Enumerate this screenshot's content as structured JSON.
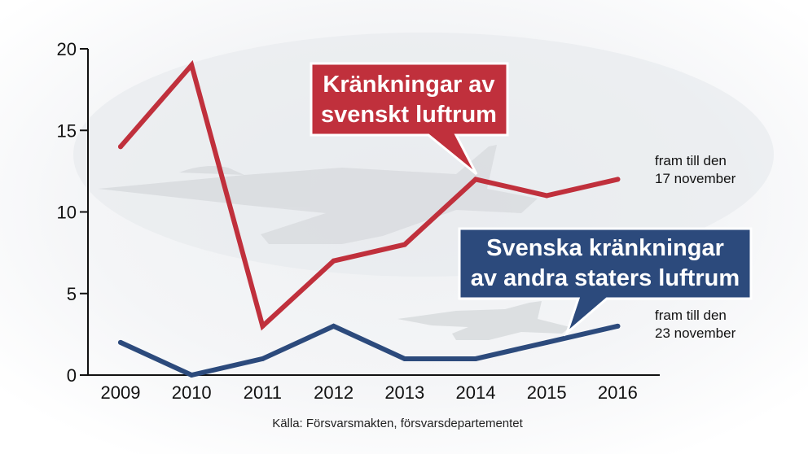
{
  "chart_data": {
    "type": "line",
    "categories": [
      "2009",
      "2010",
      "2011",
      "2012",
      "2013",
      "2014",
      "2015",
      "2016"
    ],
    "ylim": [
      0,
      20
    ],
    "yticks": [
      "0",
      "5",
      "10",
      "15",
      "20"
    ],
    "grid": false,
    "series": [
      {
        "name_lines": [
          "Kränkningar av",
          "svenskt luftrum"
        ],
        "color": "#c0303c",
        "values": [
          14,
          19,
          3,
          7,
          8,
          12,
          11,
          12
        ],
        "end_note": [
          "fram till den",
          "17 november"
        ]
      },
      {
        "name_lines": [
          "Svenska kränkningar",
          "av andra staters luftrum"
        ],
        "color": "#2c4a7c",
        "values": [
          2,
          0,
          1,
          3,
          1,
          1,
          2,
          3
        ],
        "end_note": [
          "fram till den",
          "23 november"
        ]
      }
    ],
    "source": "Källa: Försvarsmakten, försvarsdepartementet"
  }
}
